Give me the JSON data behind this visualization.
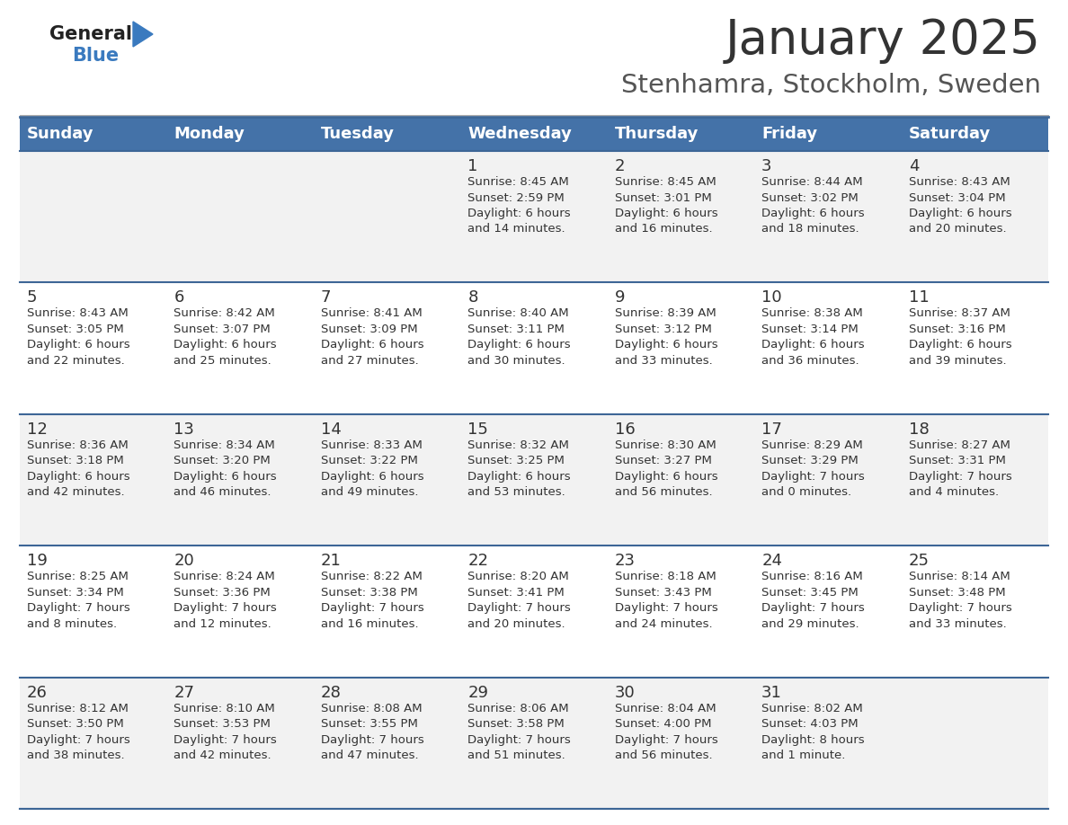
{
  "title": "January 2025",
  "subtitle": "Stenhamra, Stockholm, Sweden",
  "days_of_week": [
    "Sunday",
    "Monday",
    "Tuesday",
    "Wednesday",
    "Thursday",
    "Friday",
    "Saturday"
  ],
  "header_bg": "#4472a8",
  "header_text": "#ffffff",
  "row_bg_even": "#f2f2f2",
  "row_bg_odd": "#ffffff",
  "cell_text": "#333333",
  "border_color": "#3d6696",
  "day_number_color": "#333333",
  "logo_general_color": "#222222",
  "logo_blue_color": "#3a7abf",
  "logo_triangle_color": "#3a7abf",
  "title_color": "#333333",
  "subtitle_color": "#555555",
  "calendar": [
    [
      {
        "day": null,
        "text": ""
      },
      {
        "day": null,
        "text": ""
      },
      {
        "day": null,
        "text": ""
      },
      {
        "day": 1,
        "text": "Sunrise: 8:45 AM\nSunset: 2:59 PM\nDaylight: 6 hours\nand 14 minutes."
      },
      {
        "day": 2,
        "text": "Sunrise: 8:45 AM\nSunset: 3:01 PM\nDaylight: 6 hours\nand 16 minutes."
      },
      {
        "day": 3,
        "text": "Sunrise: 8:44 AM\nSunset: 3:02 PM\nDaylight: 6 hours\nand 18 minutes."
      },
      {
        "day": 4,
        "text": "Sunrise: 8:43 AM\nSunset: 3:04 PM\nDaylight: 6 hours\nand 20 minutes."
      }
    ],
    [
      {
        "day": 5,
        "text": "Sunrise: 8:43 AM\nSunset: 3:05 PM\nDaylight: 6 hours\nand 22 minutes."
      },
      {
        "day": 6,
        "text": "Sunrise: 8:42 AM\nSunset: 3:07 PM\nDaylight: 6 hours\nand 25 minutes."
      },
      {
        "day": 7,
        "text": "Sunrise: 8:41 AM\nSunset: 3:09 PM\nDaylight: 6 hours\nand 27 minutes."
      },
      {
        "day": 8,
        "text": "Sunrise: 8:40 AM\nSunset: 3:11 PM\nDaylight: 6 hours\nand 30 minutes."
      },
      {
        "day": 9,
        "text": "Sunrise: 8:39 AM\nSunset: 3:12 PM\nDaylight: 6 hours\nand 33 minutes."
      },
      {
        "day": 10,
        "text": "Sunrise: 8:38 AM\nSunset: 3:14 PM\nDaylight: 6 hours\nand 36 minutes."
      },
      {
        "day": 11,
        "text": "Sunrise: 8:37 AM\nSunset: 3:16 PM\nDaylight: 6 hours\nand 39 minutes."
      }
    ],
    [
      {
        "day": 12,
        "text": "Sunrise: 8:36 AM\nSunset: 3:18 PM\nDaylight: 6 hours\nand 42 minutes."
      },
      {
        "day": 13,
        "text": "Sunrise: 8:34 AM\nSunset: 3:20 PM\nDaylight: 6 hours\nand 46 minutes."
      },
      {
        "day": 14,
        "text": "Sunrise: 8:33 AM\nSunset: 3:22 PM\nDaylight: 6 hours\nand 49 minutes."
      },
      {
        "day": 15,
        "text": "Sunrise: 8:32 AM\nSunset: 3:25 PM\nDaylight: 6 hours\nand 53 minutes."
      },
      {
        "day": 16,
        "text": "Sunrise: 8:30 AM\nSunset: 3:27 PM\nDaylight: 6 hours\nand 56 minutes."
      },
      {
        "day": 17,
        "text": "Sunrise: 8:29 AM\nSunset: 3:29 PM\nDaylight: 7 hours\nand 0 minutes."
      },
      {
        "day": 18,
        "text": "Sunrise: 8:27 AM\nSunset: 3:31 PM\nDaylight: 7 hours\nand 4 minutes."
      }
    ],
    [
      {
        "day": 19,
        "text": "Sunrise: 8:25 AM\nSunset: 3:34 PM\nDaylight: 7 hours\nand 8 minutes."
      },
      {
        "day": 20,
        "text": "Sunrise: 8:24 AM\nSunset: 3:36 PM\nDaylight: 7 hours\nand 12 minutes."
      },
      {
        "day": 21,
        "text": "Sunrise: 8:22 AM\nSunset: 3:38 PM\nDaylight: 7 hours\nand 16 minutes."
      },
      {
        "day": 22,
        "text": "Sunrise: 8:20 AM\nSunset: 3:41 PM\nDaylight: 7 hours\nand 20 minutes."
      },
      {
        "day": 23,
        "text": "Sunrise: 8:18 AM\nSunset: 3:43 PM\nDaylight: 7 hours\nand 24 minutes."
      },
      {
        "day": 24,
        "text": "Sunrise: 8:16 AM\nSunset: 3:45 PM\nDaylight: 7 hours\nand 29 minutes."
      },
      {
        "day": 25,
        "text": "Sunrise: 8:14 AM\nSunset: 3:48 PM\nDaylight: 7 hours\nand 33 minutes."
      }
    ],
    [
      {
        "day": 26,
        "text": "Sunrise: 8:12 AM\nSunset: 3:50 PM\nDaylight: 7 hours\nand 38 minutes."
      },
      {
        "day": 27,
        "text": "Sunrise: 8:10 AM\nSunset: 3:53 PM\nDaylight: 7 hours\nand 42 minutes."
      },
      {
        "day": 28,
        "text": "Sunrise: 8:08 AM\nSunset: 3:55 PM\nDaylight: 7 hours\nand 47 minutes."
      },
      {
        "day": 29,
        "text": "Sunrise: 8:06 AM\nSunset: 3:58 PM\nDaylight: 7 hours\nand 51 minutes."
      },
      {
        "day": 30,
        "text": "Sunrise: 8:04 AM\nSunset: 4:00 PM\nDaylight: 7 hours\nand 56 minutes."
      },
      {
        "day": 31,
        "text": "Sunrise: 8:02 AM\nSunset: 4:03 PM\nDaylight: 8 hours\nand 1 minute."
      },
      {
        "day": null,
        "text": ""
      }
    ]
  ]
}
